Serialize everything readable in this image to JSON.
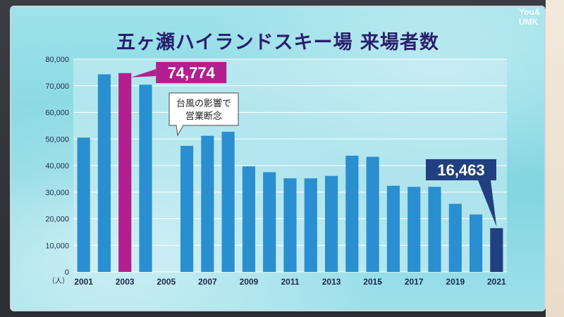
{
  "chart_data": {
    "type": "bar",
    "title": "五ヶ瀬ハイランドスキー場 来場者数",
    "unit_label": "（人）",
    "x": [
      2001,
      2002,
      2003,
      2004,
      2005,
      2006,
      2007,
      2008,
      2009,
      2010,
      2011,
      2012,
      2013,
      2014,
      2015,
      2016,
      2017,
      2018,
      2019,
      2020,
      2021
    ],
    "tick_labels": [
      "2001",
      "2003",
      "2005",
      "2007",
      "2009",
      "2011",
      "2013",
      "2015",
      "2017",
      "2019",
      "2021"
    ],
    "values": [
      50500,
      74300,
      74774,
      70400,
      null,
      47400,
      51200,
      52700,
      39700,
      37500,
      35200,
      35200,
      36100,
      43700,
      43300,
      32400,
      32000,
      32000,
      25600,
      21600,
      16463
    ],
    "ylim": [
      0,
      80000
    ],
    "yticks": [
      "0",
      "10,000",
      "20,000",
      "30,000",
      "40,000",
      "50,000",
      "60,000",
      "70,000",
      "80,000"
    ],
    "ytick_values": [
      0,
      10000,
      20000,
      30000,
      40000,
      50000,
      60000,
      70000,
      80000
    ],
    "grid": true,
    "highlight": [
      {
        "year": 2003,
        "label": "74,774",
        "color": "#b31f8f"
      },
      {
        "year": 2021,
        "label": "16,463",
        "color": "#21407f"
      }
    ],
    "annotation": {
      "year": 2005,
      "text_line1": "台風の影響で",
      "text_line2": "営業断念"
    },
    "colors": {
      "bar": "#2a8fd0",
      "highlight_2003": "#b31f8f",
      "highlight_2021": "#21407f"
    }
  },
  "watermark": {
    "line1": "You&",
    "line2": "UMK"
  }
}
